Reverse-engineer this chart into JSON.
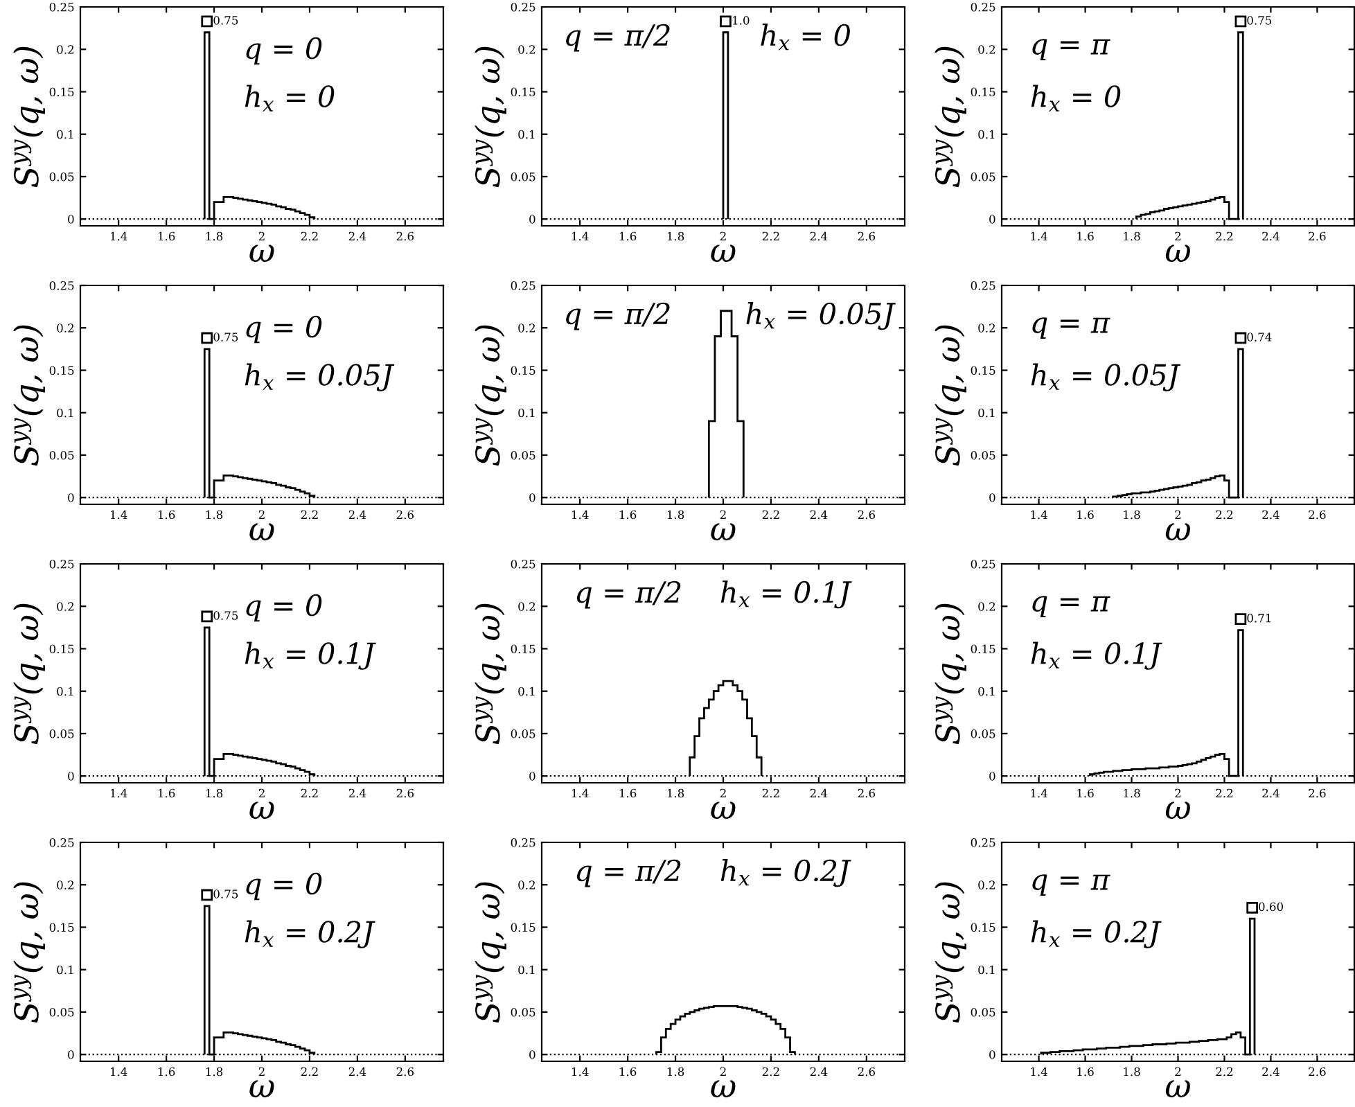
{
  "chart_data": [
    {
      "type": "histogram",
      "color": "#000000",
      "xlabel": "ω",
      "ylabel": "S$^{yy}$(q, ω)",
      "xlim": [
        1.24,
        2.76
      ],
      "ylim": [
        -0.008,
        0.25
      ],
      "xticks": [
        1.4,
        1.6,
        1.8,
        2,
        2.2,
        2.4,
        2.6
      ],
      "yticks": [
        0,
        0.05,
        0.1,
        0.15,
        0.2,
        0.25
      ],
      "ref_lines": [
        {
          "axis": "y",
          "value": 0,
          "line_style": "dotted"
        }
      ],
      "bins": [
        1.76,
        1.78,
        1.8,
        1.82,
        1.84,
        1.86,
        1.88,
        1.9,
        1.92,
        1.94,
        1.96,
        1.98,
        2.0,
        2.02,
        2.04,
        2.06,
        2.08,
        2.1,
        2.12,
        2.14,
        2.16,
        2.18,
        2.2,
        2.22
      ],
      "values": [
        0.22,
        0,
        0.02,
        0.02,
        0.026,
        0.026,
        0.025,
        0.024,
        0.023,
        0.022,
        0.021,
        0.02,
        0.019,
        0.018,
        0.017,
        0.015,
        0.014,
        0.012,
        0.011,
        0.009,
        0.007,
        0.005,
        0.002
      ],
      "annotations": [
        "q = 0",
        "h$_{x}$ = 0",
        {
          "text": "0.75",
          "x": 1.77,
          "y": 0.22
        }
      ]
    },
    {
      "type": "histogram",
      "color": "#000000",
      "xlabel": "ω",
      "ylabel": "S$^{yy}$(q, ω)",
      "xlim": [
        1.24,
        2.76
      ],
      "ylim": [
        -0.008,
        0.25
      ],
      "xticks": [
        1.4,
        1.6,
        1.8,
        2,
        2.2,
        2.4,
        2.6
      ],
      "yticks": [
        0,
        0.05,
        0.1,
        0.15,
        0.2,
        0.25
      ],
      "ref_lines": [
        {
          "axis": "y",
          "value": 0,
          "line_style": "dotted"
        }
      ],
      "bins": [
        2.0,
        2.02
      ],
      "values": [
        0.22
      ],
      "annotations": [
        "q = π/2",
        "h$_{x}$ = 0",
        {
          "text": "1.0",
          "x": 2.01,
          "y": 0.22
        }
      ]
    },
    {
      "type": "histogram",
      "color": "#000000",
      "xlabel": "ω",
      "ylabel": "S$^{yy}$(q, ω)",
      "xlim": [
        1.24,
        2.76
      ],
      "ylim": [
        -0.008,
        0.25
      ],
      "xticks": [
        1.4,
        1.6,
        1.8,
        2,
        2.2,
        2.4,
        2.6
      ],
      "yticks": [
        0,
        0.05,
        0.1,
        0.15,
        0.2,
        0.25
      ],
      "ref_lines": [
        {
          "axis": "y",
          "value": 0,
          "line_style": "dotted"
        }
      ],
      "bins": [
        1.82,
        1.84,
        1.86,
        1.88,
        1.9,
        1.92,
        1.94,
        1.96,
        1.98,
        2.0,
        2.02,
        2.04,
        2.06,
        2.08,
        2.1,
        2.12,
        2.14,
        2.16,
        2.18,
        2.2,
        2.22,
        2.24,
        2.26,
        2.28
      ],
      "values": [
        0.003,
        0.005,
        0.006,
        0.008,
        0.009,
        0.01,
        0.012,
        0.013,
        0.014,
        0.015,
        0.016,
        0.017,
        0.018,
        0.019,
        0.02,
        0.021,
        0.023,
        0.025,
        0.026,
        0.02,
        0,
        0,
        0.22
      ],
      "annotations": [
        "q = π",
        "h$_{x}$ = 0",
        {
          "text": "0.75",
          "x": 2.27,
          "y": 0.22
        }
      ]
    },
    {
      "type": "histogram",
      "color": "#000000",
      "xlabel": "ω",
      "ylabel": "S$^{yy}$(q, ω)",
      "xlim": [
        1.24,
        2.76
      ],
      "ylim": [
        -0.008,
        0.25
      ],
      "xticks": [
        1.4,
        1.6,
        1.8,
        2,
        2.2,
        2.4,
        2.6
      ],
      "yticks": [
        0,
        0.05,
        0.1,
        0.15,
        0.2,
        0.25
      ],
      "ref_lines": [
        {
          "axis": "y",
          "value": 0,
          "line_style": "dotted"
        }
      ],
      "bins": [
        1.76,
        1.78,
        1.8,
        1.82,
        1.84,
        1.86,
        1.88,
        1.9,
        1.92,
        1.94,
        1.96,
        1.98,
        2.0,
        2.02,
        2.04,
        2.06,
        2.08,
        2.1,
        2.12,
        2.14,
        2.16,
        2.18,
        2.2,
        2.22
      ],
      "values": [
        0.175,
        0,
        0.02,
        0.02,
        0.026,
        0.026,
        0.025,
        0.024,
        0.023,
        0.022,
        0.021,
        0.02,
        0.019,
        0.018,
        0.017,
        0.015,
        0.014,
        0.012,
        0.011,
        0.009,
        0.007,
        0.005,
        0.002
      ],
      "annotations": [
        "q = 0",
        "h$_{x}$ = 0.05J",
        {
          "text": "0.75",
          "x": 1.77,
          "y": 0.175
        }
      ]
    },
    {
      "type": "histogram",
      "color": "#000000",
      "xlabel": "ω",
      "ylabel": "S$^{yy}$(q, ω)",
      "xlim": [
        1.24,
        2.76
      ],
      "ylim": [
        -0.008,
        0.25
      ],
      "xticks": [
        1.4,
        1.6,
        1.8,
        2,
        2.2,
        2.4,
        2.6
      ],
      "yticks": [
        0,
        0.05,
        0.1,
        0.15,
        0.2,
        0.25
      ],
      "ref_lines": [
        {
          "axis": "y",
          "value": 0,
          "line_style": "dotted"
        }
      ],
      "bins": [
        1.94,
        1.965,
        1.99,
        2.035,
        2.06,
        2.085
      ],
      "values": [
        0.09,
        0.19,
        0.22,
        0.19,
        0.09
      ],
      "annotations": [
        "q = π/2",
        "h$_{x}$ = 0.05J"
      ]
    },
    {
      "type": "histogram",
      "color": "#000000",
      "xlabel": "ω",
      "ylabel": "S$^{yy}$(q, ω)",
      "xlim": [
        1.24,
        2.76
      ],
      "ylim": [
        -0.008,
        0.25
      ],
      "xticks": [
        1.4,
        1.6,
        1.8,
        2,
        2.2,
        2.4,
        2.6
      ],
      "yticks": [
        0,
        0.05,
        0.1,
        0.15,
        0.2,
        0.25
      ],
      "ref_lines": [
        {
          "axis": "y",
          "value": 0,
          "line_style": "dotted"
        }
      ],
      "bins": [
        1.72,
        1.74,
        1.76,
        1.78,
        1.8,
        1.82,
        1.84,
        1.86,
        1.88,
        1.9,
        1.92,
        1.94,
        1.96,
        1.98,
        2.0,
        2.02,
        2.04,
        2.06,
        2.08,
        2.1,
        2.12,
        2.14,
        2.16,
        2.18,
        2.2,
        2.22,
        2.24,
        2.26,
        2.28
      ],
      "values": [
        0.001,
        0.002,
        0.003,
        0.004,
        0.005,
        0.005,
        0.006,
        0.006,
        0.007,
        0.008,
        0.009,
        0.01,
        0.011,
        0.012,
        0.013,
        0.014,
        0.015,
        0.017,
        0.018,
        0.02,
        0.021,
        0.023,
        0.025,
        0.026,
        0.02,
        0,
        0,
        0.175
      ],
      "annotations": [
        "q = π",
        "h$_{x}$ = 0.05J",
        {
          "text": "0.74",
          "x": 2.27,
          "y": 0.175
        }
      ]
    },
    {
      "type": "histogram",
      "color": "#000000",
      "xlabel": "ω",
      "ylabel": "S$^{yy}$(q, ω)",
      "xlim": [
        1.24,
        2.76
      ],
      "ylim": [
        -0.008,
        0.25
      ],
      "xticks": [
        1.4,
        1.6,
        1.8,
        2,
        2.2,
        2.4,
        2.6
      ],
      "yticks": [
        0,
        0.05,
        0.1,
        0.15,
        0.2,
        0.25
      ],
      "ref_lines": [
        {
          "axis": "y",
          "value": 0,
          "line_style": "dotted"
        }
      ],
      "bins": [
        1.76,
        1.78,
        1.8,
        1.82,
        1.84,
        1.86,
        1.88,
        1.9,
        1.92,
        1.94,
        1.96,
        1.98,
        2.0,
        2.02,
        2.04,
        2.06,
        2.08,
        2.1,
        2.12,
        2.14,
        2.16,
        2.18,
        2.2,
        2.22
      ],
      "values": [
        0.175,
        0,
        0.02,
        0.02,
        0.026,
        0.026,
        0.025,
        0.024,
        0.023,
        0.022,
        0.021,
        0.02,
        0.019,
        0.018,
        0.017,
        0.015,
        0.014,
        0.012,
        0.011,
        0.009,
        0.007,
        0.005,
        0.002
      ],
      "annotations": [
        "q = 0",
        "h$_{x}$ = 0.1J",
        {
          "text": "0.75",
          "x": 1.77,
          "y": 0.175
        }
      ]
    },
    {
      "type": "histogram",
      "color": "#000000",
      "xlabel": "ω",
      "ylabel": "S$^{yy}$(q, ω)",
      "xlim": [
        1.24,
        2.76
      ],
      "ylim": [
        -0.008,
        0.25
      ],
      "xticks": [
        1.4,
        1.6,
        1.8,
        2,
        2.2,
        2.4,
        2.6
      ],
      "yticks": [
        0,
        0.05,
        0.1,
        0.15,
        0.2,
        0.25
      ],
      "ref_lines": [
        {
          "axis": "y",
          "value": 0,
          "line_style": "dotted"
        }
      ],
      "bins": [
        1.86,
        1.88,
        1.9,
        1.92,
        1.94,
        1.96,
        1.98,
        2.0,
        2.02,
        2.04,
        2.06,
        2.08,
        2.1,
        2.12,
        2.14,
        2.16
      ],
      "values": [
        0.022,
        0.047,
        0.068,
        0.08,
        0.09,
        0.1,
        0.107,
        0.112,
        0.112,
        0.107,
        0.1,
        0.09,
        0.068,
        0.047,
        0.022
      ],
      "annotations": [
        "q = π/2",
        "h$_{x}$ = 0.1J"
      ]
    },
    {
      "type": "histogram",
      "color": "#000000",
      "xlabel": "ω",
      "ylabel": "S$^{yy}$(q, ω)",
      "xlim": [
        1.24,
        2.76
      ],
      "ylim": [
        -0.008,
        0.25
      ],
      "xticks": [
        1.4,
        1.6,
        1.8,
        2,
        2.2,
        2.4,
        2.6
      ],
      "yticks": [
        0,
        0.05,
        0.1,
        0.15,
        0.2,
        0.25
      ],
      "ref_lines": [
        {
          "axis": "y",
          "value": 0,
          "line_style": "dotted"
        }
      ],
      "bins": [
        1.62,
        1.64,
        1.66,
        1.68,
        1.7,
        1.72,
        1.74,
        1.76,
        1.78,
        1.8,
        1.82,
        1.84,
        1.86,
        1.88,
        1.9,
        1.92,
        1.94,
        1.96,
        1.98,
        2.0,
        2.02,
        2.04,
        2.06,
        2.08,
        2.1,
        2.12,
        2.14,
        2.16,
        2.18,
        2.2,
        2.22,
        2.24,
        2.26,
        2.28
      ],
      "values": [
        0.002,
        0.003,
        0.004,
        0.005,
        0.005,
        0.006,
        0.006,
        0.007,
        0.007,
        0.008,
        0.008,
        0.008,
        0.009,
        0.009,
        0.009,
        0.01,
        0.01,
        0.011,
        0.011,
        0.012,
        0.013,
        0.014,
        0.015,
        0.017,
        0.019,
        0.021,
        0.023,
        0.025,
        0.026,
        0.02,
        0,
        0,
        0.172
      ],
      "annotations": [
        "q = π",
        "h$_{x}$ = 0.1J",
        {
          "text": "0.71",
          "x": 2.27,
          "y": 0.172
        }
      ]
    },
    {
      "type": "histogram",
      "color": "#000000",
      "xlabel": "ω",
      "ylabel": "S$^{yy}$(q, ω)",
      "xlim": [
        1.24,
        2.76
      ],
      "ylim": [
        -0.008,
        0.25
      ],
      "xticks": [
        1.4,
        1.6,
        1.8,
        2,
        2.2,
        2.4,
        2.6
      ],
      "yticks": [
        0,
        0.05,
        0.1,
        0.15,
        0.2,
        0.25
      ],
      "ref_lines": [
        {
          "axis": "y",
          "value": 0,
          "line_style": "dotted"
        }
      ],
      "bins": [
        1.76,
        1.78,
        1.8,
        1.82,
        1.84,
        1.86,
        1.88,
        1.9,
        1.92,
        1.94,
        1.96,
        1.98,
        2.0,
        2.02,
        2.04,
        2.06,
        2.08,
        2.1,
        2.12,
        2.14,
        2.16,
        2.18,
        2.2,
        2.22
      ],
      "values": [
        0.175,
        0,
        0.02,
        0.02,
        0.026,
        0.026,
        0.025,
        0.024,
        0.023,
        0.022,
        0.021,
        0.02,
        0.019,
        0.018,
        0.017,
        0.015,
        0.014,
        0.012,
        0.011,
        0.009,
        0.007,
        0.005,
        0.002
      ],
      "annotations": [
        "q = 0",
        "h$_{x}$ = 0.2J",
        {
          "text": "0.75",
          "x": 1.77,
          "y": 0.175
        }
      ]
    },
    {
      "type": "histogram",
      "color": "#000000",
      "xlabel": "ω",
      "ylabel": "S$^{yy}$(q, ω)",
      "xlim": [
        1.24,
        2.76
      ],
      "ylim": [
        -0.008,
        0.25
      ],
      "xticks": [
        1.4,
        1.6,
        1.8,
        2,
        2.2,
        2.4,
        2.6
      ],
      "yticks": [
        0,
        0.05,
        0.1,
        0.15,
        0.2,
        0.25
      ],
      "ref_lines": [
        {
          "axis": "y",
          "value": 0,
          "line_style": "dotted"
        }
      ],
      "bins": [
        1.72,
        1.74,
        1.76,
        1.78,
        1.8,
        1.82,
        1.84,
        1.86,
        1.88,
        1.9,
        1.92,
        1.94,
        1.96,
        1.98,
        2.0,
        2.02,
        2.04,
        2.06,
        2.08,
        2.1,
        2.12,
        2.14,
        2.16,
        2.18,
        2.2,
        2.22,
        2.24,
        2.26,
        2.28,
        2.3
      ],
      "values": [
        0.003,
        0.02,
        0.03,
        0.036,
        0.041,
        0.045,
        0.048,
        0.05,
        0.052,
        0.054,
        0.055,
        0.056,
        0.057,
        0.057,
        0.057,
        0.057,
        0.057,
        0.056,
        0.055,
        0.054,
        0.052,
        0.05,
        0.048,
        0.045,
        0.041,
        0.036,
        0.03,
        0.02,
        0.003
      ],
      "annotations": [
        "q = π/2",
        "h$_{x}$ = 0.2J"
      ]
    },
    {
      "type": "histogram",
      "color": "#000000",
      "xlabel": "ω",
      "ylabel": "S$^{yy}$(q, ω)",
      "xlim": [
        1.24,
        2.76
      ],
      "ylim": [
        -0.008,
        0.25
      ],
      "xticks": [
        1.4,
        1.6,
        1.8,
        2,
        2.2,
        2.4,
        2.6
      ],
      "yticks": [
        0,
        0.05,
        0.1,
        0.15,
        0.2,
        0.25
      ],
      "ref_lines": [
        {
          "axis": "y",
          "value": 0,
          "line_style": "dotted"
        }
      ],
      "bins": [
        1.41,
        1.43,
        1.45,
        1.47,
        1.49,
        1.51,
        1.53,
        1.55,
        1.57,
        1.59,
        1.61,
        1.63,
        1.65,
        1.67,
        1.69,
        1.71,
        1.73,
        1.75,
        1.77,
        1.79,
        1.81,
        1.83,
        1.85,
        1.87,
        1.89,
        1.91,
        1.93,
        1.95,
        1.97,
        1.99,
        2.01,
        2.03,
        2.05,
        2.07,
        2.09,
        2.11,
        2.13,
        2.15,
        2.17,
        2.19,
        2.21,
        2.23,
        2.25,
        2.27,
        2.29,
        2.31,
        2.33
      ],
      "values": [
        0.002,
        0.002,
        0.003,
        0.003,
        0.004,
        0.004,
        0.004,
        0.005,
        0.005,
        0.006,
        0.006,
        0.006,
        0.007,
        0.007,
        0.008,
        0.008,
        0.008,
        0.009,
        0.009,
        0.01,
        0.01,
        0.01,
        0.011,
        0.011,
        0.012,
        0.012,
        0.012,
        0.013,
        0.013,
        0.014,
        0.014,
        0.014,
        0.015,
        0.015,
        0.016,
        0.016,
        0.017,
        0.017,
        0.018,
        0.018,
        0.02,
        0.024,
        0.026,
        0.02,
        0,
        0.16
      ],
      "annotations": [
        "q = π",
        "h$_{x}$ = 0.2J",
        {
          "text": "0.60",
          "x": 2.32,
          "y": 0.16
        }
      ]
    }
  ]
}
